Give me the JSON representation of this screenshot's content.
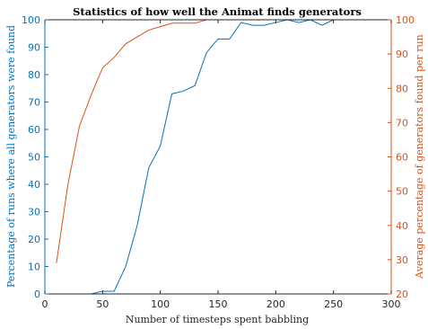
{
  "chart_data": {
    "type": "line",
    "title": "Statistics of how well the Animat finds generators",
    "xlabel": "Number of timesteps spent babbling",
    "xlim": [
      0,
      300
    ],
    "xticks": [
      0,
      50,
      100,
      150,
      200,
      250,
      300
    ],
    "grid": false,
    "legend": "none",
    "axes": {
      "left": {
        "label": "Percentage of runs where all generators were found",
        "ylim": [
          0,
          100
        ],
        "ticks": [
          0,
          10,
          20,
          30,
          40,
          50,
          60,
          70,
          80,
          90,
          100
        ],
        "color": "#0072BD"
      },
      "right": {
        "label": "Average percentage of generators found per run",
        "ylim": [
          20,
          100
        ],
        "ticks": [
          20,
          30,
          40,
          50,
          60,
          70,
          80,
          90,
          100
        ],
        "color": "#D95319"
      }
    },
    "series": [
      {
        "axis": "left",
        "color": "#0072BD",
        "x": [
          10,
          20,
          30,
          40,
          50,
          60,
          70,
          80,
          90,
          100,
          110,
          120,
          130,
          140,
          150,
          160,
          170,
          180,
          190,
          200,
          210,
          220,
          230,
          240,
          250,
          260,
          270,
          280,
          290,
          300
        ],
        "y": [
          0,
          0,
          0,
          0,
          1,
          1,
          10,
          25,
          46,
          54,
          73,
          74,
          76,
          88,
          93,
          93,
          99,
          98,
          98,
          99,
          100,
          99,
          100,
          98,
          100,
          100,
          100,
          100,
          100,
          100
        ]
      },
      {
        "axis": "right",
        "color": "#D95319",
        "x": [
          10,
          20,
          30,
          40,
          50,
          60,
          70,
          80,
          90,
          100,
          110,
          120,
          130,
          140,
          150,
          160,
          170,
          180,
          190,
          200,
          210,
          220,
          230,
          240,
          250,
          260,
          270,
          280,
          290,
          300
        ],
        "y": [
          29,
          52,
          69,
          78,
          86,
          89,
          93,
          95,
          97,
          98,
          99,
          99,
          99,
          100,
          100,
          100,
          100,
          100,
          100,
          100,
          100,
          100,
          100,
          100,
          100,
          100,
          100,
          100,
          100,
          100
        ]
      }
    ]
  }
}
